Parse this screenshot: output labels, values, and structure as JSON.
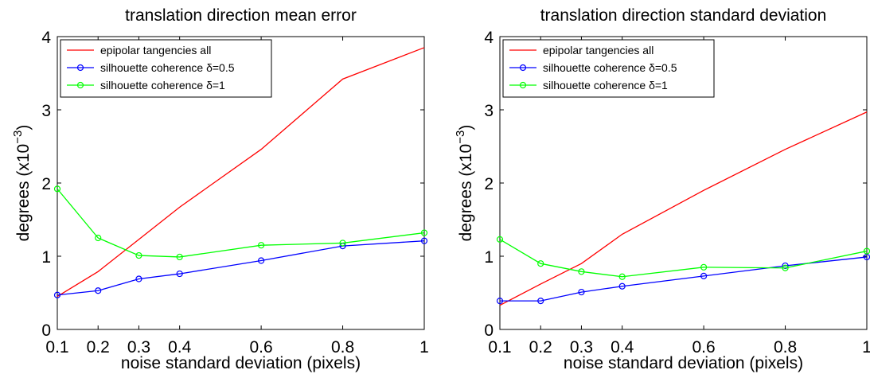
{
  "chart_data": [
    {
      "type": "line",
      "title": "translation direction mean error",
      "xlabel": "noise standard deviation (pixels)",
      "ylabel": "degrees (x10",
      "ylabel_sup": "−3",
      "ylabel_close": ")",
      "xlim": [
        0.1,
        1
      ],
      "ylim": [
        0,
        4
      ],
      "xticks": [
        0.1,
        0.2,
        0.3,
        0.4,
        0.6,
        0.8,
        1
      ],
      "xtick_labels": [
        "0.1",
        "0.2",
        "0.3",
        "0.4",
        "0.6",
        "0.8",
        "1"
      ],
      "yticks": [
        0,
        1,
        2,
        3,
        4
      ],
      "ytick_labels": [
        "0",
        "1",
        "2",
        "3",
        "4"
      ],
      "legend_position": "top-left",
      "grid": false,
      "series": [
        {
          "name": "epipolar tangencies all",
          "color": "#ff0000",
          "marker": "none",
          "x": [
            0.1,
            0.2,
            0.3,
            0.4,
            0.6,
            0.8,
            1
          ],
          "y": [
            0.45,
            0.79,
            1.23,
            1.67,
            2.46,
            3.42,
            3.85
          ]
        },
        {
          "name": "silhouette coherence δ=0.5",
          "color": "#0000ff",
          "marker": "circle",
          "x": [
            0.1,
            0.2,
            0.3,
            0.4,
            0.6,
            0.8,
            1
          ],
          "y": [
            0.47,
            0.53,
            0.69,
            0.76,
            0.94,
            1.14,
            1.21
          ]
        },
        {
          "name": "silhouette coherence δ=1",
          "color": "#00ff00",
          "marker": "circle",
          "x": [
            0.1,
            0.2,
            0.3,
            0.4,
            0.6,
            0.8,
            1
          ],
          "y": [
            1.92,
            1.25,
            1.01,
            0.99,
            1.15,
            1.18,
            1.32
          ]
        }
      ]
    },
    {
      "type": "line",
      "title": "translation direction standard deviation",
      "xlabel": "noise standard deviation (pixels)",
      "ylabel": "degrees (x10",
      "ylabel_sup": "−3",
      "ylabel_close": ")",
      "xlim": [
        0.1,
        1
      ],
      "ylim": [
        0,
        4
      ],
      "xticks": [
        0.1,
        0.2,
        0.3,
        0.4,
        0.6,
        0.8,
        1
      ],
      "xtick_labels": [
        "0.1",
        "0.2",
        "0.3",
        "0.4",
        "0.6",
        "0.8",
        "1"
      ],
      "yticks": [
        0,
        1,
        2,
        3,
        4
      ],
      "ytick_labels": [
        "0",
        "1",
        "2",
        "3",
        "4"
      ],
      "legend_position": "top-left",
      "grid": false,
      "series": [
        {
          "name": "epipolar tangencies all",
          "color": "#ff0000",
          "marker": "none",
          "x": [
            0.1,
            0.2,
            0.3,
            0.4,
            0.6,
            0.8,
            1
          ],
          "y": [
            0.33,
            0.62,
            0.9,
            1.3,
            1.9,
            2.46,
            2.97
          ]
        },
        {
          "name": "silhouette coherence δ=0.5",
          "color": "#0000ff",
          "marker": "circle",
          "x": [
            0.1,
            0.2,
            0.3,
            0.4,
            0.6,
            0.8,
            1
          ],
          "y": [
            0.39,
            0.39,
            0.51,
            0.59,
            0.73,
            0.87,
            0.99
          ]
        },
        {
          "name": "silhouette coherence δ=1",
          "color": "#00ff00",
          "marker": "circle",
          "x": [
            0.1,
            0.2,
            0.3,
            0.4,
            0.6,
            0.8,
            1
          ],
          "y": [
            1.23,
            0.9,
            0.79,
            0.72,
            0.85,
            0.84,
            1.07
          ]
        }
      ]
    }
  ]
}
